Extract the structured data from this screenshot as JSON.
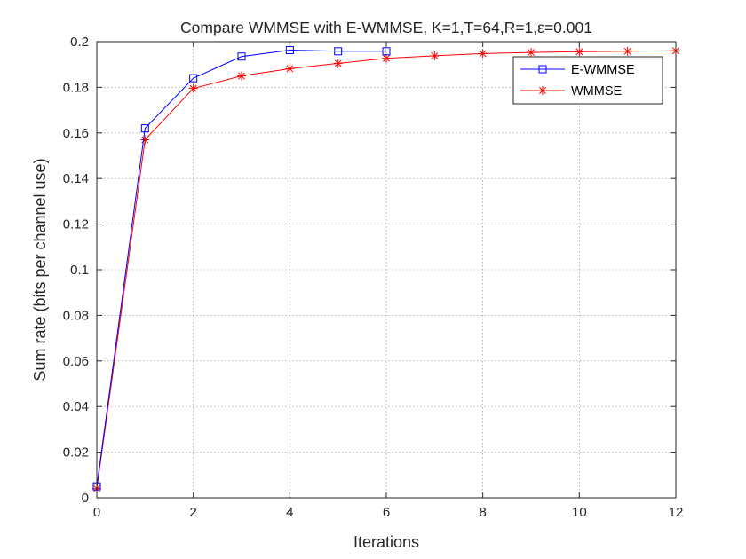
{
  "chart_data": {
    "type": "line",
    "title": "Compare WMMSE with E-WMMSE, K=1,T=64,R=1,ε=0.001",
    "xlabel": "Iterations",
    "ylabel": "Sum rate (bits per channel use)",
    "xlim": [
      0,
      12
    ],
    "ylim": [
      0,
      0.2
    ],
    "xticks": [
      0,
      2,
      4,
      6,
      8,
      10,
      12
    ],
    "yticks": [
      0,
      0.02,
      0.04,
      0.06,
      0.08,
      0.1,
      0.12,
      0.14,
      0.16,
      0.18,
      0.2
    ],
    "grid": true,
    "legend_position": "top-right",
    "series": [
      {
        "name": "E-WMMSE",
        "color": "#0000ff",
        "marker": "square",
        "x": [
          0,
          1,
          2,
          3,
          4,
          5,
          6
        ],
        "y": [
          0.005,
          0.162,
          0.184,
          0.1935,
          0.1963,
          0.1958,
          0.1958
        ]
      },
      {
        "name": "WMMSE",
        "color": "#ff0000",
        "marker": "asterisk",
        "x": [
          0,
          1,
          2,
          3,
          4,
          5,
          6,
          7,
          8,
          9,
          10,
          11,
          12
        ],
        "y": [
          0.004,
          0.157,
          0.1795,
          0.185,
          0.1882,
          0.1905,
          0.1927,
          0.1938,
          0.1948,
          0.1953,
          0.1956,
          0.1958,
          0.196
        ]
      }
    ]
  }
}
